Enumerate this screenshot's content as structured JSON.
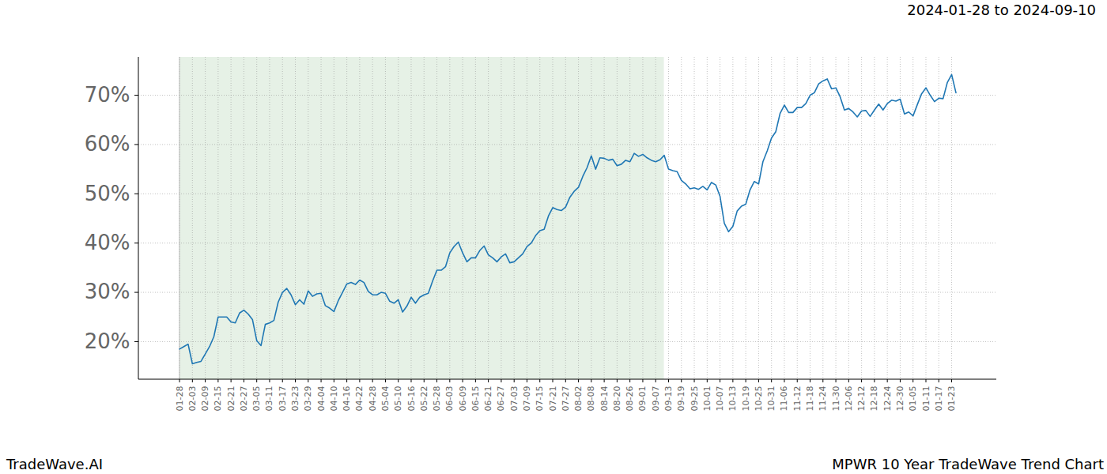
{
  "chart_data": {
    "type": "line",
    "title": "2024-01-28 to 2024-09-10",
    "source": "TradeWave.AI",
    "caption": "MPWR 10 Year TradeWave Trend Chart",
    "highlight": {
      "from": "2024-01-28",
      "to": "2024-09-10"
    },
    "categories": [
      "01-28",
      null,
      null,
      "02-03",
      null,
      null,
      "02-09",
      null,
      null,
      "02-15",
      null,
      null,
      "02-21",
      null,
      null,
      "02-27",
      null,
      null,
      "03-05",
      null,
      null,
      "03-11",
      null,
      null,
      "03-17",
      null,
      null,
      "03-23",
      null,
      null,
      "03-29",
      null,
      null,
      "04-04",
      null,
      null,
      "04-10",
      null,
      null,
      "04-16",
      null,
      null,
      "04-22",
      null,
      null,
      "04-28",
      null,
      null,
      "05-04",
      null,
      null,
      "05-10",
      null,
      null,
      "05-16",
      null,
      null,
      "05-22",
      null,
      null,
      "05-28",
      null,
      null,
      "06-03",
      null,
      null,
      "06-09",
      null,
      null,
      "06-15",
      null,
      null,
      "06-21",
      null,
      null,
      "06-27",
      null,
      null,
      "07-03",
      null,
      null,
      "07-09",
      null,
      null,
      "07-15",
      null,
      null,
      "07-21",
      null,
      null,
      "07-27",
      null,
      null,
      "08-02",
      null,
      null,
      "08-08",
      null,
      null,
      "08-14",
      null,
      null,
      "08-20",
      null,
      null,
      "08-26",
      null,
      null,
      "09-01",
      null,
      null,
      "09-07",
      null,
      null,
      "09-13",
      null,
      null,
      "09-19",
      null,
      null,
      "09-25",
      null,
      null,
      "10-01",
      null,
      null,
      "10-07",
      null,
      null,
      "10-13",
      null,
      null,
      "10-19",
      null,
      null,
      "10-25",
      null,
      null,
      "10-31",
      null,
      null,
      "11-06",
      null,
      null,
      "11-12",
      null,
      null,
      "11-18",
      null,
      null,
      "11-24",
      null,
      null,
      "11-30",
      null,
      null,
      "12-06",
      null,
      null,
      "12-12",
      null,
      null,
      "12-18",
      null,
      null,
      "12-24",
      null,
      null,
      "12-30",
      null,
      null,
      "01-05",
      null,
      null,
      "01-11",
      null,
      null,
      "01-17",
      null,
      null,
      "01-23",
      null
    ],
    "values": [
      18.5,
      19,
      19.5,
      15.5,
      15.8,
      16,
      17.5,
      19,
      21,
      25,
      25,
      25,
      24,
      23.8,
      25.8,
      26.4,
      25.6,
      24.5,
      20.2,
      19.2,
      23.5,
      23.8,
      24.3,
      28,
      30,
      30.8,
      29.5,
      27.5,
      28.5,
      27.6,
      30.3,
      29.2,
      29.7,
      29.8,
      27.3,
      26.8,
      26.1,
      28.3,
      30,
      31.7,
      32,
      31.6,
      32.5,
      32,
      30.2,
      29.5,
      29.5,
      30,
      29.8,
      28.2,
      27.8,
      28.5,
      26,
      27.2,
      29,
      27.8,
      29,
      29.5,
      29.8,
      32.3,
      34.5,
      34.5,
      35.2,
      38,
      39.3,
      40.2,
      38,
      36.2,
      37,
      37,
      38.5,
      39.4,
      37.6,
      37,
      36.2,
      37.2,
      37.8,
      36,
      36.2,
      37,
      37.8,
      39.3,
      40,
      41.5,
      42.5,
      42.8,
      45.5,
      47.2,
      46.8,
      46.6,
      47.3,
      49.3,
      50.5,
      51.3,
      53.5,
      55.3,
      57.7,
      55,
      57.3,
      57.2,
      56.8,
      57,
      55.7,
      56,
      56.8,
      56.5,
      58.2,
      57.6,
      58,
      57.3,
      56.8,
      56.5,
      56.9,
      57.8,
      55,
      54.7,
      54.5,
      52.7,
      52,
      51,
      51.2,
      50.9,
      51.5,
      50.8,
      52.3,
      51.8,
      49.5,
      44,
      42.3,
      43.4,
      46.5,
      47.5,
      47.9,
      50.8,
      52.5,
      52,
      56.5,
      58.7,
      61.3,
      62.6,
      66.3,
      68,
      66.5,
      66.5,
      67.5,
      67.5,
      68.3,
      70,
      70.5,
      72.3,
      72.9,
      73.3,
      71.3,
      71.5,
      69.7,
      67,
      67.3,
      66.6,
      65.6,
      66.8,
      66.9,
      65.7,
      67,
      68.2,
      67,
      68.3,
      69,
      68.8,
      69.2,
      66.2,
      66.6,
      65.8,
      68.1,
      70.3,
      71.5,
      70,
      68.7,
      69.4,
      69.3,
      72.6,
      74.2,
      70.5
    ],
    "color": "#1f77b4",
    "ylim": [
      12.3,
      77.7
    ],
    "yticks": [
      {
        "value": 20,
        "label": "20%"
      },
      {
        "value": 30,
        "label": "30%"
      },
      {
        "value": 40,
        "label": "40%"
      },
      {
        "value": 50,
        "label": "50%"
      },
      {
        "value": 60,
        "label": "60%"
      },
      {
        "value": 70,
        "label": "70%"
      }
    ],
    "grid": true
  }
}
